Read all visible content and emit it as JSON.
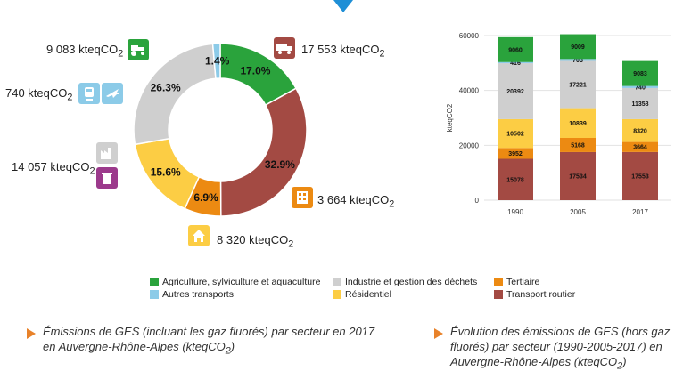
{
  "colors": {
    "agriculture": "#2aa33c",
    "autres_transports": "#8ccbe8",
    "industrie": "#cfcfcf",
    "residentiel": "#fccd44",
    "tertiaire": "#ec8a12",
    "transport_routier": "#a34a43",
    "accent": "#1f8fd6",
    "arrow": "#e8822a"
  },
  "chart_data": [
    {
      "type": "pie",
      "variant": "donut",
      "labels": [
        "Agriculture, sylviculture et aquaculture",
        "Transport routier",
        "Tertiaire",
        "Résidentiel",
        "Industrie et gestion des déchets",
        "Autres transports"
      ],
      "values": [
        9083,
        17553,
        3664,
        8320,
        14057,
        740
      ],
      "percent_labels": [
        "17.0%",
        "32.9%",
        "6.9%",
        "15.6%",
        "26.3%",
        "1.4%"
      ],
      "value_labels": [
        "9 083 kteqCO",
        "17 553 kteqCO",
        "3 664 kteqCO",
        "8 320 kteqCO",
        "14 057 kteqCO",
        "740 kteqCO"
      ],
      "unit_subscript": "2",
      "icons": [
        "tractor-icon",
        "truck-icon",
        "office-building-icon",
        "house-icon",
        "factory-waste-icon",
        "train-plane-icon"
      ]
    },
    {
      "type": "bar",
      "stacked": true,
      "categories": [
        "1990",
        "2005",
        "2017"
      ],
      "ylabel": "kteqCO2",
      "ylim": [
        0,
        60000
      ],
      "yticks": [
        "0",
        "20000",
        "40000",
        "60000"
      ],
      "series": [
        {
          "name": "Transport routier",
          "values": [
            15078,
            17534,
            17553
          ]
        },
        {
          "name": "Tertiaire",
          "values": [
            3952,
            5168,
            3664
          ]
        },
        {
          "name": "Résidentiel",
          "values": [
            10502,
            10839,
            8320
          ]
        },
        {
          "name": "Industrie et gestion des déchets",
          "values": [
            20392,
            17221,
            11358
          ]
        },
        {
          "name": "Autres transports",
          "values": [
            416,
            703,
            740
          ]
        },
        {
          "name": "Agriculture, sylviculture et aquaculture",
          "values": [
            9060,
            9009,
            9083
          ]
        }
      ]
    }
  ],
  "legend": [
    {
      "label": "Agriculture, sylviculture et aquaculture",
      "color": "#2aa33c"
    },
    {
      "label": "Autres transports",
      "color": "#8ccbe8"
    },
    {
      "label": "Industrie et gestion des déchets",
      "color": "#cfcfcf"
    },
    {
      "label": "Résidentiel",
      "color": "#fccd44"
    },
    {
      "label": "Tertiaire",
      "color": "#ec8a12"
    },
    {
      "label": "Transport routier",
      "color": "#a34a43"
    }
  ],
  "captions": {
    "left": {
      "line1": "Émissions de GES (incluant les gaz fluorés) par secteur en 2017",
      "line2_pre": "en Auvergne-Rhône-Alpes (kteqCO",
      "sub": "2",
      "line2_post": ")"
    },
    "right": {
      "line1": "Évolution des émissions de GES (hors gaz",
      "line2": "fluorés) par secteur (1990-2005-2017) en",
      "line3_pre": "Auvergne-Rhône-Alpes (kteqCO",
      "sub": "2",
      "line3_post": ")"
    }
  }
}
